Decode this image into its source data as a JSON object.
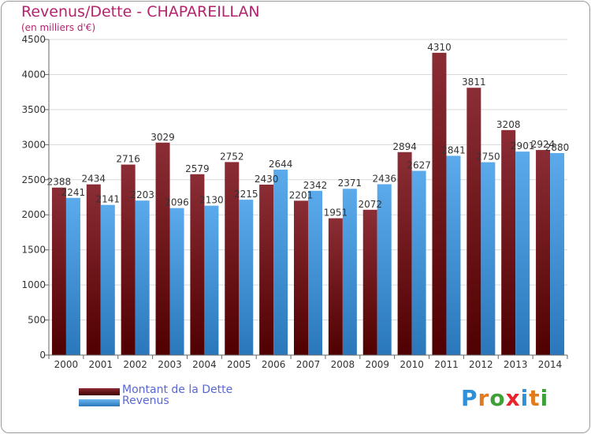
{
  "title": "Revenus/Dette - CHAPAREILLAN",
  "subtitle": "(en milliers d'€)",
  "colors": {
    "title": "#b5236e",
    "grid": "#d9d9d9",
    "axis": "#666666",
    "dette_top": "#8b2d35",
    "dette_bottom": "#500000",
    "revenus_top": "#5aaaec",
    "revenus_bottom": "#2a78bb"
  },
  "legend": {
    "items": [
      {
        "label": "Montant de la Dette",
        "color": "#6b0a10"
      },
      {
        "label": "Revenus",
        "color": "#4aa3e6"
      }
    ]
  },
  "logo": {
    "text": "Proxiti",
    "letter_colors": [
      "#2f8fd8",
      "#e27b1e",
      "#3fa03a",
      "#e8232a",
      "#2f8fd8",
      "#e27b1e",
      "#3fa03a"
    ]
  },
  "chart_data": {
    "type": "bar",
    "categories": [
      "2000",
      "2001",
      "2002",
      "2003",
      "2004",
      "2005",
      "2006",
      "2007",
      "2008",
      "2009",
      "2010",
      "2011",
      "2012",
      "2013",
      "2014"
    ],
    "series": [
      {
        "name": "Montant de la Dette",
        "values": [
          2388,
          2434,
          2716,
          3029,
          2579,
          2752,
          2430,
          2201,
          1951,
          2072,
          2894,
          4310,
          3811,
          3208,
          2924
        ]
      },
      {
        "name": "Revenus",
        "values": [
          2241,
          2141,
          2203,
          2096,
          2130,
          2215,
          2644,
          2342,
          2371,
          2436,
          2627,
          2841,
          2750,
          2901,
          2880
        ]
      }
    ],
    "data_labels": [
      [
        "2388",
        "2434",
        "2716",
        "3029",
        "2579",
        "2752",
        "2430",
        "2201",
        "1951",
        "2072",
        "2894",
        "4310",
        "3811",
        "3208",
        "2924"
      ],
      [
        "2241",
        "2141",
        "2203",
        "2096",
        "2130",
        "2215",
        "2644",
        "2342",
        "2371",
        "2436",
        "2627",
        "2841",
        "2750",
        "2901",
        "2880"
      ]
    ],
    "ylim": [
      0,
      4500
    ],
    "yticks": [
      0,
      500,
      1000,
      1500,
      2000,
      2500,
      3000,
      3500,
      4000,
      4500
    ],
    "grid": true,
    "legend_position": "bottom-left"
  }
}
